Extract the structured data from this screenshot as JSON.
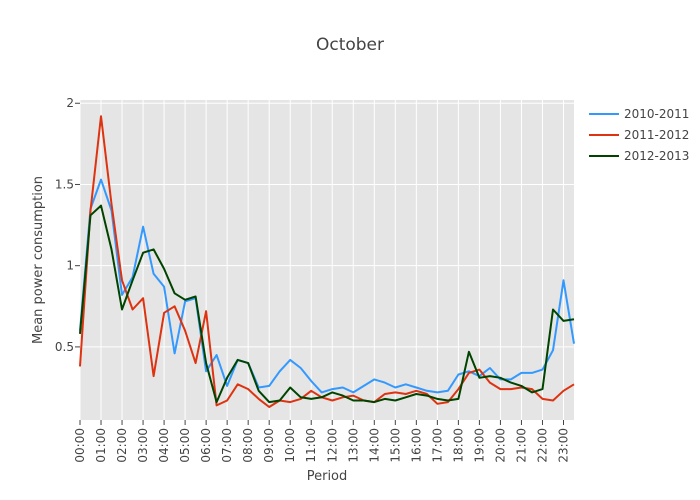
{
  "chart_data": {
    "type": "line",
    "title": "October",
    "xlabel": "Period",
    "ylabel": "Mean power consumption",
    "ylim": [
      0.05,
      2.02
    ],
    "yticks": [
      "0.5",
      "1",
      "1.5",
      "2"
    ],
    "ytick_values": [
      0.5,
      1,
      1.5,
      2
    ],
    "grid": true,
    "legend_position": "right",
    "x": [
      "00:00",
      "00:30",
      "01:00",
      "01:30",
      "02:00",
      "02:30",
      "03:00",
      "03:30",
      "04:00",
      "04:30",
      "05:00",
      "05:30",
      "06:00",
      "06:30",
      "07:00",
      "07:30",
      "08:00",
      "08:30",
      "09:00",
      "09:30",
      "10:00",
      "10:30",
      "11:00",
      "11:30",
      "12:00",
      "12:30",
      "13:00",
      "13:30",
      "14:00",
      "14:30",
      "15:00",
      "15:30",
      "16:00",
      "16:30",
      "17:00",
      "17:30",
      "18:00",
      "18:30",
      "19:00",
      "19:30",
      "20:00",
      "20:30",
      "21:00",
      "21:30",
      "22:00",
      "22:30",
      "23:00",
      "23:30"
    ],
    "xticks": [
      "00:00",
      "01:00",
      "02:00",
      "03:00",
      "04:00",
      "05:00",
      "06:00",
      "07:00",
      "08:00",
      "09:00",
      "10:00",
      "11:00",
      "12:00",
      "13:00",
      "14:00",
      "15:00",
      "16:00",
      "17:00",
      "18:00",
      "19:00",
      "20:00",
      "21:00",
      "22:00",
      "23:00"
    ],
    "series": [
      {
        "name": "2010-2011",
        "color": "#3399ff",
        "values": [
          0.6,
          1.35,
          1.53,
          1.34,
          0.82,
          0.93,
          1.24,
          0.95,
          0.87,
          0.46,
          0.78,
          0.8,
          0.35,
          0.45,
          0.26,
          0.42,
          0.4,
          0.25,
          0.26,
          0.35,
          0.42,
          0.37,
          0.29,
          0.22,
          0.24,
          0.25,
          0.22,
          0.26,
          0.3,
          0.28,
          0.25,
          0.27,
          0.25,
          0.23,
          0.22,
          0.23,
          0.33,
          0.35,
          0.32,
          0.37,
          0.3,
          0.3,
          0.34,
          0.34,
          0.36,
          0.48,
          0.91,
          0.52
        ]
      },
      {
        "name": "2011-2012",
        "color": "#dd3311",
        "values": [
          0.38,
          1.34,
          1.92,
          1.38,
          0.91,
          0.73,
          0.8,
          0.32,
          0.71,
          0.75,
          0.6,
          0.4,
          0.72,
          0.14,
          0.17,
          0.27,
          0.24,
          0.18,
          0.13,
          0.17,
          0.16,
          0.18,
          0.23,
          0.19,
          0.17,
          0.19,
          0.2,
          0.17,
          0.16,
          0.21,
          0.22,
          0.21,
          0.23,
          0.21,
          0.15,
          0.16,
          0.24,
          0.34,
          0.36,
          0.28,
          0.24,
          0.24,
          0.25,
          0.24,
          0.18,
          0.17,
          0.23,
          0.27
        ]
      },
      {
        "name": "2012-2013",
        "color": "#004400",
        "values": [
          0.58,
          1.31,
          1.37,
          1.1,
          0.73,
          0.91,
          1.08,
          1.1,
          0.98,
          0.83,
          0.79,
          0.81,
          0.4,
          0.16,
          0.31,
          0.42,
          0.4,
          0.23,
          0.16,
          0.17,
          0.25,
          0.19,
          0.18,
          0.19,
          0.22,
          0.2,
          0.17,
          0.17,
          0.16,
          0.18,
          0.17,
          0.19,
          0.21,
          0.2,
          0.18,
          0.17,
          0.18,
          0.47,
          0.31,
          0.32,
          0.31,
          0.28,
          0.26,
          0.22,
          0.24,
          0.73,
          0.66,
          0.67
        ]
      }
    ]
  }
}
